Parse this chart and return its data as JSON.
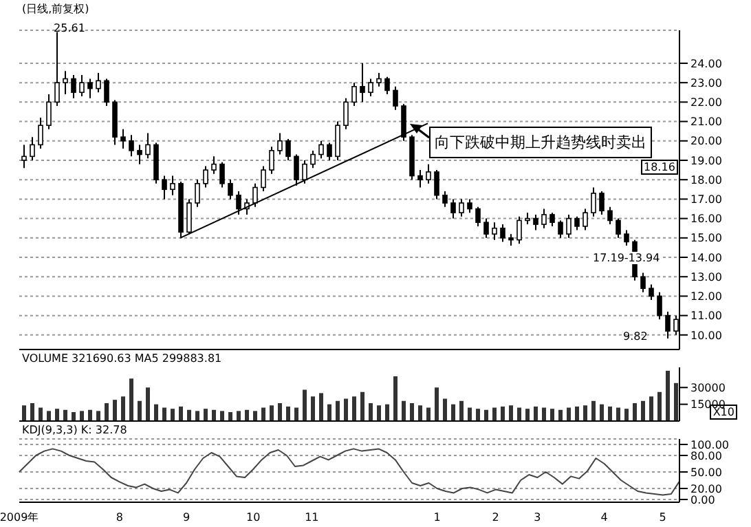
{
  "chart_data": [
    {
      "type": "candlestick",
      "title": "(日线,前复权)",
      "color": "#000000",
      "grid": "y",
      "tick_labels": "y",
      "categories": [
        null,
        null,
        null,
        null,
        null,
        null,
        null,
        null,
        null,
        null,
        null,
        null,
        null,
        null,
        null,
        null,
        null,
        null,
        null,
        null,
        null,
        null,
        null,
        null,
        null,
        null,
        null,
        null,
        null,
        null,
        null,
        null,
        null,
        null,
        null,
        null,
        null,
        null,
        null,
        null,
        null,
        null,
        null,
        null,
        null,
        null,
        null,
        null,
        null,
        null,
        null,
        null,
        null,
        null,
        null,
        null,
        null,
        null,
        null,
        null,
        null,
        null,
        null,
        null,
        null,
        null,
        null,
        null,
        null,
        null,
        null,
        null,
        null,
        null,
        null,
        null,
        null,
        null,
        null,
        null
      ],
      "ohlc": [
        [
          19.0,
          19.8,
          18.6,
          19.2
        ],
        [
          19.2,
          20.2,
          19.0,
          19.8
        ],
        [
          19.8,
          21.2,
          19.6,
          20.8
        ],
        [
          20.8,
          22.4,
          20.6,
          22.0
        ],
        [
          22.0,
          25.61,
          21.8,
          23.0
        ],
        [
          23.0,
          23.6,
          22.4,
          23.2
        ],
        [
          23.2,
          23.4,
          22.2,
          22.5
        ],
        [
          22.5,
          23.4,
          22.3,
          23.0
        ],
        [
          23.0,
          23.2,
          22.2,
          22.7
        ],
        [
          22.7,
          23.5,
          22.5,
          23.1
        ],
        [
          23.1,
          23.2,
          21.8,
          22.0
        ],
        [
          22.0,
          22.1,
          19.8,
          20.2
        ],
        [
          20.2,
          20.6,
          19.6,
          20.0
        ],
        [
          20.0,
          20.3,
          19.2,
          19.5
        ],
        [
          19.5,
          19.8,
          18.8,
          19.3
        ],
        [
          19.3,
          20.4,
          19.1,
          19.8
        ],
        [
          19.8,
          19.9,
          17.8,
          18.0
        ],
        [
          18.0,
          18.2,
          17.0,
          17.5
        ],
        [
          17.5,
          18.2,
          17.2,
          17.8
        ],
        [
          17.8,
          17.9,
          15.0,
          15.3
        ],
        [
          15.3,
          17.0,
          15.2,
          16.8
        ],
        [
          16.8,
          18.0,
          16.6,
          17.8
        ],
        [
          17.8,
          18.7,
          17.6,
          18.5
        ],
        [
          18.5,
          19.2,
          18.3,
          18.8
        ],
        [
          18.8,
          18.9,
          17.6,
          17.8
        ],
        [
          17.8,
          18.0,
          17.0,
          17.2
        ],
        [
          17.2,
          17.4,
          16.2,
          16.5
        ],
        [
          16.5,
          17.0,
          16.2,
          16.8
        ],
        [
          16.8,
          17.8,
          16.6,
          17.6
        ],
        [
          17.6,
          18.7,
          17.4,
          18.5
        ],
        [
          18.5,
          19.7,
          18.3,
          19.5
        ],
        [
          19.5,
          20.4,
          19.3,
          20.0
        ],
        [
          20.0,
          20.1,
          19.0,
          19.2
        ],
        [
          19.2,
          19.3,
          17.7,
          18.0
        ],
        [
          18.0,
          19.0,
          17.8,
          18.8
        ],
        [
          18.8,
          19.5,
          18.6,
          19.3
        ],
        [
          19.3,
          20.0,
          19.1,
          19.8
        ],
        [
          19.8,
          19.9,
          19.0,
          19.2
        ],
        [
          19.2,
          21.0,
          19.0,
          20.8
        ],
        [
          20.8,
          22.2,
          20.6,
          22.0
        ],
        [
          22.0,
          23.0,
          21.8,
          22.8
        ],
        [
          22.8,
          24.0,
          22.0,
          22.5
        ],
        [
          22.5,
          23.2,
          22.3,
          23.0
        ],
        [
          23.0,
          23.5,
          22.8,
          23.2
        ],
        [
          23.2,
          23.3,
          22.4,
          22.6
        ],
        [
          22.6,
          22.8,
          21.6,
          21.8
        ],
        [
          21.8,
          21.9,
          20.0,
          20.2
        ],
        [
          20.2,
          20.3,
          18.0,
          18.2
        ],
        [
          18.2,
          18.5,
          17.6,
          18.0
        ],
        [
          18.0,
          18.8,
          17.8,
          18.4
        ],
        [
          18.4,
          18.5,
          17.0,
          17.2
        ],
        [
          17.2,
          17.4,
          16.6,
          16.8
        ],
        [
          16.8,
          17.0,
          16.0,
          16.3
        ],
        [
          16.3,
          17.0,
          16.1,
          16.8
        ],
        [
          16.8,
          17.0,
          16.3,
          16.5
        ],
        [
          16.5,
          16.6,
          15.6,
          15.8
        ],
        [
          15.8,
          16.0,
          15.0,
          15.2
        ],
        [
          15.2,
          15.8,
          14.9,
          15.5
        ],
        [
          15.5,
          15.7,
          14.8,
          15.0
        ],
        [
          15.0,
          15.2,
          14.6,
          14.9
        ],
        [
          14.9,
          16.1,
          14.7,
          15.9
        ],
        [
          15.9,
          16.3,
          15.7,
          16.0
        ],
        [
          16.0,
          16.2,
          15.4,
          15.7
        ],
        [
          15.7,
          16.5,
          15.5,
          16.2
        ],
        [
          16.2,
          16.3,
          15.6,
          15.8
        ],
        [
          15.8,
          15.9,
          15.0,
          15.2
        ],
        [
          15.2,
          16.2,
          15.0,
          16.0
        ],
        [
          16.0,
          16.1,
          15.4,
          15.6
        ],
        [
          15.6,
          16.5,
          15.4,
          16.3
        ],
        [
          16.3,
          17.6,
          16.1,
          17.3
        ],
        [
          17.3,
          17.4,
          16.2,
          16.4
        ],
        [
          16.4,
          16.6,
          15.7,
          15.9
        ],
        [
          15.9,
          16.0,
          15.0,
          15.2
        ],
        [
          15.2,
          15.4,
          14.6,
          14.8
        ],
        [
          14.8,
          14.9,
          12.8,
          13.0
        ],
        [
          13.0,
          13.2,
          12.2,
          12.4
        ],
        [
          12.4,
          12.6,
          11.8,
          12.0
        ],
        [
          12.0,
          12.2,
          10.8,
          11.0
        ],
        [
          11.0,
          11.2,
          9.82,
          10.2
        ],
        [
          10.2,
          11.0,
          10.0,
          10.8
        ]
      ],
      "series": [
        {
          "type": "line",
          "color": "#000000",
          "values": [
            null,
            null,
            null,
            null,
            null,
            null,
            null,
            null,
            null,
            null,
            null,
            null,
            null,
            null,
            null,
            null,
            null,
            null,
            null,
            15.0,
            null,
            null,
            null,
            null,
            null,
            null,
            null,
            null,
            null,
            null,
            null,
            null,
            null,
            null,
            null,
            null,
            null,
            null,
            null,
            null,
            null,
            null,
            null,
            null,
            null,
            null,
            null,
            null,
            null,
            20.9,
            null,
            null,
            null,
            null,
            null,
            null,
            null,
            null,
            null,
            null,
            null,
            null,
            null,
            null,
            null,
            null,
            null,
            null,
            null,
            null,
            null,
            null,
            null,
            null,
            null,
            null,
            null,
            null,
            null,
            null
          ]
        }
      ],
      "ylim": [
        9.25,
        25.7
      ],
      "yticks": [
        {
          "value": 10,
          "label": "10.00"
        },
        {
          "value": 11,
          "label": "11.00"
        },
        {
          "value": 12,
          "label": "12.00"
        },
        {
          "value": 13,
          "label": "13.00"
        },
        {
          "value": 14,
          "label": "14.00"
        },
        {
          "value": 15,
          "label": "15.00"
        },
        {
          "value": 16,
          "label": "16.00"
        },
        {
          "value": 17,
          "label": "17.00"
        },
        {
          "value": 18,
          "label": "18.00"
        },
        {
          "value": 19,
          "label": "19.00"
        },
        {
          "value": 20,
          "label": "20.00"
        },
        {
          "value": 21,
          "label": "21.00"
        },
        {
          "value": 22,
          "label": "22.00"
        },
        {
          "value": 23,
          "label": "23.00"
        },
        {
          "value": 24,
          "label": "24.00"
        }
      ],
      "annotations": [
        "25.61",
        "9.82",
        "17.19-13.94",
        "18.16",
        "向下跌破中期上升趋势线时卖出"
      ]
    },
    {
      "type": "bar",
      "title": "VOLUME 321690.63 MA5 299883.81",
      "color": "#333333",
      "ylabel": "X10",
      "tick_labels": "y",
      "categories": [
        null,
        null,
        null,
        null,
        null,
        null,
        null,
        null,
        null,
        null,
        null,
        null,
        null,
        null,
        null,
        null,
        null,
        null,
        null,
        null,
        null,
        null,
        null,
        null,
        null,
        null,
        null,
        null,
        null,
        null,
        null,
        null,
        null,
        null,
        null,
        null,
        null,
        null,
        null,
        null,
        null,
        null,
        null,
        null,
        null,
        null,
        null,
        null,
        null,
        null,
        null,
        null,
        null,
        null,
        null,
        null,
        null,
        null,
        null,
        null,
        null,
        null,
        null,
        null,
        null,
        null,
        null,
        null,
        null,
        null,
        null,
        null,
        null,
        null,
        null,
        null,
        null,
        null,
        null,
        null
      ],
      "values": [
        14000,
        16000,
        12000,
        9000,
        11000,
        10000,
        8000,
        9000,
        10000,
        9000,
        16000,
        19000,
        22000,
        38000,
        18000,
        30000,
        15000,
        12000,
        11000,
        13000,
        10000,
        9000,
        11000,
        10000,
        9000,
        8000,
        9000,
        10000,
        9000,
        12000,
        14000,
        16000,
        13000,
        12000,
        28000,
        22000,
        25000,
        15000,
        18000,
        20000,
        22000,
        26000,
        16000,
        14000,
        15000,
        40000,
        18000,
        16000,
        14000,
        12000,
        30000,
        20000,
        15000,
        18000,
        12000,
        11000,
        10000,
        12000,
        13000,
        14000,
        12000,
        11000,
        13000,
        12000,
        11000,
        10000,
        12000,
        13000,
        14000,
        18000,
        15000,
        13000,
        12000,
        11000,
        16000,
        18000,
        22000,
        26000,
        45000,
        34000
      ],
      "ylim": [
        0,
        48000
      ],
      "yticks": [
        15000,
        30000
      ]
    },
    {
      "type": "line",
      "title": "KDJ(9,3,3) K: 32.78",
      "color": "#444444",
      "grid": "y",
      "categories": [
        "2009年",
        null,
        null,
        null,
        null,
        null,
        null,
        null,
        null,
        null,
        null,
        null,
        "8",
        null,
        null,
        null,
        null,
        null,
        null,
        null,
        "9",
        null,
        null,
        null,
        null,
        null,
        null,
        null,
        "10",
        null,
        null,
        null,
        null,
        null,
        null,
        "11",
        null,
        null,
        null,
        null,
        null,
        null,
        null,
        null,
        null,
        null,
        null,
        null,
        null,
        null,
        "1",
        null,
        null,
        null,
        null,
        null,
        null,
        "2",
        null,
        null,
        null,
        null,
        "3",
        null,
        null,
        null,
        null,
        null,
        null,
        null,
        "4",
        null,
        null,
        null,
        null,
        null,
        null,
        "5",
        null,
        null
      ],
      "values": [
        50,
        65,
        80,
        88,
        92,
        88,
        80,
        75,
        70,
        68,
        55,
        40,
        32,
        25,
        22,
        28,
        20,
        15,
        18,
        12,
        30,
        55,
        75,
        85,
        78,
        60,
        42,
        40,
        55,
        72,
        85,
        90,
        80,
        60,
        62,
        70,
        78,
        72,
        80,
        88,
        92,
        88,
        90,
        92,
        85,
        72,
        50,
        30,
        25,
        30,
        20,
        15,
        12,
        20,
        22,
        18,
        12,
        18,
        15,
        12,
        35,
        45,
        40,
        50,
        40,
        28,
        42,
        38,
        52,
        75,
        65,
        50,
        35,
        25,
        15,
        12,
        10,
        8,
        10,
        33
      ],
      "ylim": [
        -5,
        110
      ],
      "yticks": [
        {
          "value": 0,
          "label": "0.00"
        },
        {
          "value": 20,
          "label": "20.00"
        },
        {
          "value": 50,
          "label": "50.00"
        },
        {
          "value": 80,
          "label": "80.00"
        },
        {
          "value": 100,
          "label": "100.00"
        }
      ]
    }
  ]
}
